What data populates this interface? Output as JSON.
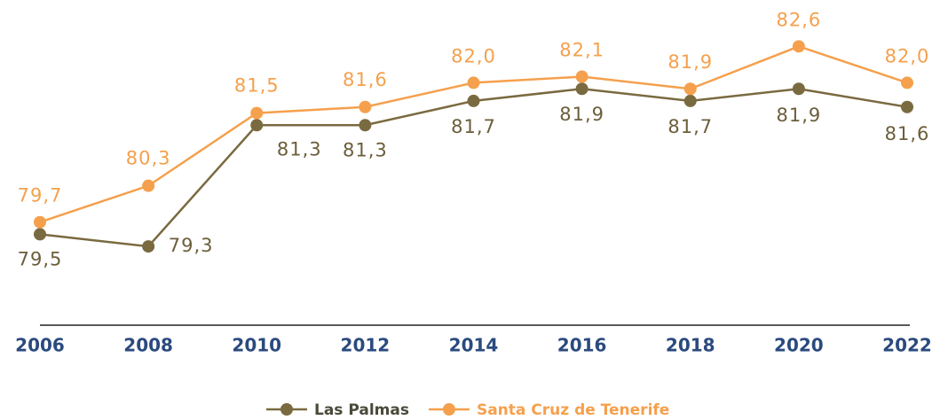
{
  "chart_data": {
    "type": "line",
    "categories": [
      "2006",
      "2008",
      "2010",
      "2012",
      "2014",
      "2016",
      "2018",
      "2020",
      "2022"
    ],
    "series": [
      {
        "name": "Las Palmas",
        "color": "#7a6a40",
        "values": [
          79.5,
          79.3,
          81.3,
          81.3,
          81.7,
          81.9,
          81.7,
          81.9,
          81.6
        ],
        "value_labels": [
          "79,5",
          "79,3",
          "81,3",
          "81,3",
          "81,7",
          "81,9",
          "81,7",
          "81,9",
          "81,6"
        ]
      },
      {
        "name": "Santa Cruz de Tenerife",
        "color": "#f5a04d",
        "values": [
          79.7,
          80.3,
          81.5,
          81.6,
          82.0,
          82.1,
          81.9,
          82.6,
          82.0
        ],
        "value_labels": [
          "79,7",
          "80,3",
          "81,5",
          "81,6",
          "82,0",
          "82,1",
          "81,9",
          "82,6",
          "82,0"
        ]
      }
    ],
    "ylim": [
      78,
      83
    ]
  }
}
